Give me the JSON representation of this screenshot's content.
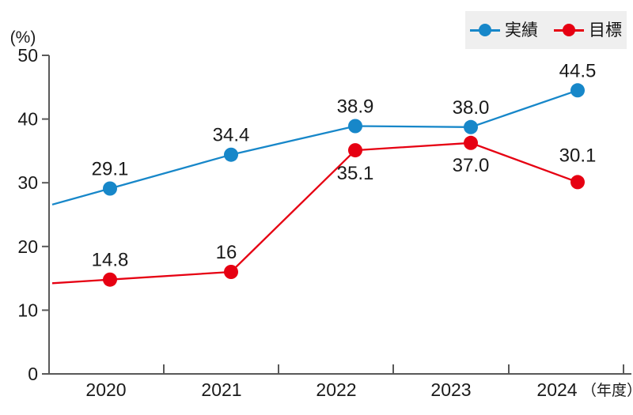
{
  "chart_data": {
    "type": "line",
    "title": "",
    "unit_label": "(%)",
    "x_suffix": "（年度）",
    "categories": [
      "2020",
      "2021",
      "2022",
      "2023",
      "2024"
    ],
    "series": [
      {
        "name": "実績",
        "color": "#1787c9",
        "values": [
          29.1,
          34.4,
          38.9,
          38.0,
          44.5
        ],
        "labels": [
          "29.1",
          "34.4",
          "38.9",
          "38.0",
          "44.5"
        ],
        "label_positions": [
          "above",
          "above",
          "above",
          "above",
          "above"
        ]
      },
      {
        "name": "目標",
        "color": "#e60012",
        "values": [
          14.8,
          16,
          35.1,
          37.0,
          30.1
        ],
        "labels": [
          "14.8",
          "16",
          "35.1",
          "37.0",
          "30.1"
        ],
        "label_positions": [
          "above",
          "above",
          "below",
          "below",
          "above"
        ]
      }
    ],
    "ylim": [
      0,
      50
    ],
    "yticks": [
      0,
      10,
      20,
      30,
      40,
      50
    ],
    "grid": false,
    "legend_position": "top-right",
    "line_extends_to_left_axis": true
  },
  "legend": {
    "items": [
      {
        "label": "実績",
        "color": "#1787c9"
      },
      {
        "label": "目標",
        "color": "#e60012"
      }
    ]
  },
  "colors": {
    "axis": "#595959",
    "text": "#1a1a1a",
    "legend_background": "#efefef",
    "background": "#ffffff"
  }
}
